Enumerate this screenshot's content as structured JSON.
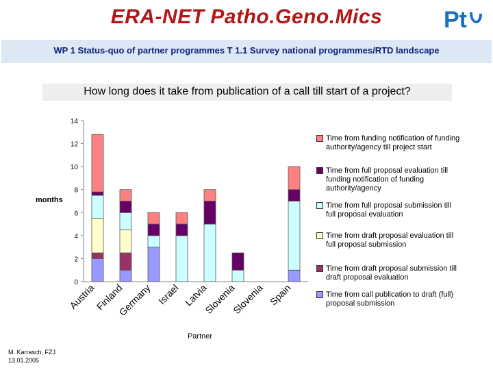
{
  "header": {
    "title": "ERA-NET Patho.Geno.Mics",
    "subtitle": "WP 1 Status-quo of partner programmes T 1.1 Survey national programmes/RTD landscape",
    "logo_text": "Pt"
  },
  "footer": {
    "author": "M. Karrasch, FZJ",
    "date": "13.01.2005"
  },
  "colors": {
    "title": "#b01818",
    "subtitle": "#10207a",
    "banner": "#dce8f3"
  },
  "chart_data": {
    "type": "bar",
    "stacked": true,
    "title": "How long does it take from publication of a call till start of a project?",
    "xlabel": "Partner",
    "ylabel": "months",
    "ylim": [
      0,
      14
    ],
    "yticks": [
      0,
      2,
      4,
      6,
      8,
      10,
      12,
      14
    ],
    "grid": false,
    "legend_position": "right",
    "categories": [
      "Austria",
      "Finland",
      "Germany",
      "Israel",
      "Latvia",
      "Slovenia",
      "Slovenia",
      "Spain"
    ],
    "series": [
      {
        "name": "Time from call publication to draft (full) proposal submission",
        "color": "#9999ff",
        "values": [
          2,
          1,
          3,
          0,
          0,
          0,
          0,
          1
        ]
      },
      {
        "name": "Time from draft proposal submission till draft proposal evaluation",
        "color": "#993366",
        "values": [
          0.5,
          1.5,
          0,
          0,
          0,
          0,
          0,
          0
        ]
      },
      {
        "name": "Time from draft proposal evaluation till full proposal submission",
        "color": "#ffffcc",
        "values": [
          3,
          2,
          0,
          0,
          0,
          0,
          0,
          0
        ]
      },
      {
        "name": "Time from full proposal submission till full proposal evaluation",
        "color": "#ccffff",
        "values": [
          2,
          1.5,
          1,
          4,
          5,
          1,
          0,
          6
        ]
      },
      {
        "name": "Time from full proposal evaluation till funding notification of funding authority/agency",
        "color": "#660066",
        "values": [
          0.3,
          1,
          1,
          1,
          2,
          1.5,
          0,
          1
        ]
      },
      {
        "name": "Time from funding notification of funding authority/agency till project start",
        "color": "#ff8080",
        "values": [
          5,
          1,
          1,
          1,
          1,
          0,
          0,
          2
        ]
      }
    ]
  }
}
